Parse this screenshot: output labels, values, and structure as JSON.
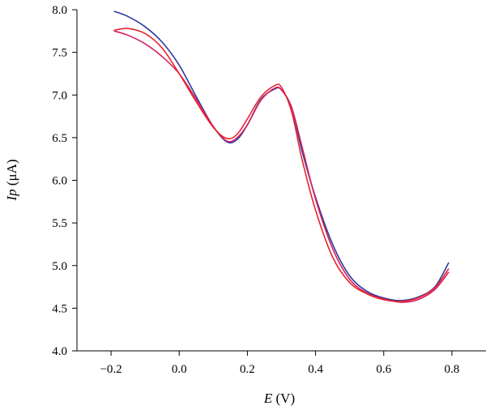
{
  "chart_data": {
    "type": "line",
    "title": "",
    "xlabel": {
      "var": "E",
      "unit": " (V)"
    },
    "ylabel": {
      "var": "Ip",
      "unit": " (μA)"
    },
    "xlim": [
      -0.3,
      0.9
    ],
    "ylim": [
      4.0,
      8.0
    ],
    "x_ticks": [
      "−0.2",
      "0.0",
      "0.2",
      "0.4",
      "0.6",
      "0.8"
    ],
    "x_tick_values": [
      -0.2,
      0.0,
      0.2,
      0.4,
      0.6,
      0.8
    ],
    "y_ticks": [
      "4.0",
      "4.5",
      "5.0",
      "5.5",
      "6.0",
      "6.5",
      "7.0",
      "7.5",
      "8.0"
    ],
    "y_tick_values": [
      4.0,
      4.5,
      5.0,
      5.5,
      6.0,
      6.5,
      7.0,
      7.5,
      8.0
    ],
    "grid": false,
    "legend": "none",
    "series": [
      {
        "color": "#2b3aa0",
        "points": [
          [
            -0.19,
            7.98
          ],
          [
            -0.15,
            7.92
          ],
          [
            -0.1,
            7.8
          ],
          [
            -0.05,
            7.62
          ],
          [
            0.0,
            7.35
          ],
          [
            0.05,
            6.98
          ],
          [
            0.1,
            6.63
          ],
          [
            0.14,
            6.45
          ],
          [
            0.17,
            6.48
          ],
          [
            0.2,
            6.65
          ],
          [
            0.24,
            6.95
          ],
          [
            0.28,
            7.07
          ],
          [
            0.3,
            7.06
          ],
          [
            0.33,
            6.85
          ],
          [
            0.36,
            6.35
          ],
          [
            0.4,
            5.8
          ],
          [
            0.45,
            5.25
          ],
          [
            0.5,
            4.88
          ],
          [
            0.55,
            4.7
          ],
          [
            0.6,
            4.62
          ],
          [
            0.65,
            4.59
          ],
          [
            0.7,
            4.63
          ],
          [
            0.75,
            4.75
          ],
          [
            0.79,
            5.03
          ]
        ]
      },
      {
        "color": "#d42060",
        "points": [
          [
            -0.19,
            7.75
          ],
          [
            -0.15,
            7.7
          ],
          [
            -0.1,
            7.6
          ],
          [
            -0.05,
            7.45
          ],
          [
            0.0,
            7.25
          ],
          [
            0.05,
            6.95
          ],
          [
            0.1,
            6.63
          ],
          [
            0.14,
            6.46
          ],
          [
            0.17,
            6.5
          ],
          [
            0.2,
            6.65
          ],
          [
            0.24,
            6.94
          ],
          [
            0.28,
            7.08
          ],
          [
            0.3,
            7.06
          ],
          [
            0.33,
            6.85
          ],
          [
            0.36,
            6.4
          ],
          [
            0.4,
            5.78
          ],
          [
            0.45,
            5.2
          ],
          [
            0.5,
            4.84
          ],
          [
            0.55,
            4.68
          ],
          [
            0.6,
            4.61
          ],
          [
            0.65,
            4.57
          ],
          [
            0.7,
            4.6
          ],
          [
            0.75,
            4.72
          ],
          [
            0.79,
            4.92
          ]
        ]
      },
      {
        "color": "#e8242c",
        "points": [
          [
            -0.19,
            7.76
          ],
          [
            -0.15,
            7.78
          ],
          [
            -0.1,
            7.72
          ],
          [
            -0.05,
            7.55
          ],
          [
            0.0,
            7.25
          ],
          [
            0.05,
            6.92
          ],
          [
            0.1,
            6.62
          ],
          [
            0.14,
            6.49
          ],
          [
            0.17,
            6.54
          ],
          [
            0.2,
            6.72
          ],
          [
            0.24,
            6.98
          ],
          [
            0.28,
            7.11
          ],
          [
            0.3,
            7.09
          ],
          [
            0.33,
            6.8
          ],
          [
            0.36,
            6.25
          ],
          [
            0.4,
            5.65
          ],
          [
            0.45,
            5.1
          ],
          [
            0.5,
            4.8
          ],
          [
            0.55,
            4.67
          ],
          [
            0.6,
            4.6
          ],
          [
            0.65,
            4.58
          ],
          [
            0.7,
            4.62
          ],
          [
            0.75,
            4.74
          ],
          [
            0.79,
            4.96
          ]
        ]
      }
    ]
  }
}
